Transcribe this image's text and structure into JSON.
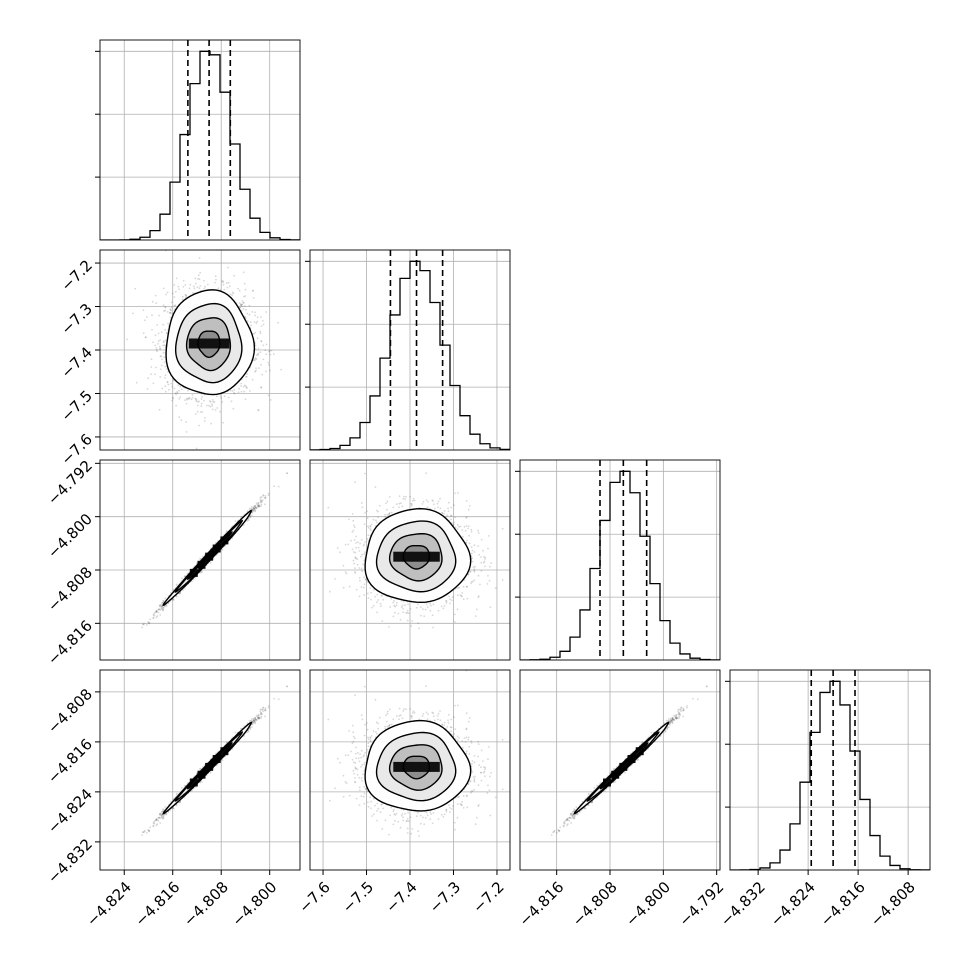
{
  "chart_data": {
    "type": "corner",
    "title": "",
    "grid": true,
    "colors": {
      "line": "#000000",
      "grid": "#b0b0b0",
      "points": "#4d4d4d"
    },
    "parameters": [
      {
        "index": 0,
        "range": [
          -4.828,
          -4.795
        ],
        "ticks": [
          -4.824,
          -4.816,
          -4.808,
          -4.8
        ],
        "tick_labels": [
          "−4.824",
          "−4.816",
          "−4.808",
          "−4.800"
        ]
      },
      {
        "index": 1,
        "range": [
          -7.63,
          -7.17
        ],
        "ticks": [
          -7.6,
          -7.5,
          -7.4,
          -7.3,
          -7.2
        ],
        "tick_labels": [
          "−7.6",
          "−7.5",
          "−7.4",
          "−7.3",
          "−7.2"
        ]
      },
      {
        "index": 2,
        "range": [
          -4.8215,
          -4.7915
        ],
        "ticks": [
          -4.816,
          -4.808,
          -4.8,
          -4.792
        ],
        "tick_labels": [
          "−4.816",
          "−4.808",
          "−4.800",
          "−4.792"
        ]
      },
      {
        "index": 3,
        "range": [
          -4.8365,
          -4.8045
        ],
        "ticks": [
          -4.832,
          -4.824,
          -4.816,
          -4.808
        ],
        "tick_labels": [
          "−4.832",
          "−4.824",
          "−4.816",
          "−4.808"
        ]
      }
    ],
    "marginals": [
      {
        "param": 0,
        "mean": -4.81,
        "sd": 0.0036,
        "quantiles": [
          -4.8135,
          -4.81,
          -4.8065
        ]
      },
      {
        "param": 1,
        "mean": -7.385,
        "sd": 0.06,
        "quantiles": [
          -7.445,
          -7.385,
          -7.325
        ]
      },
      {
        "param": 2,
        "mean": -4.806,
        "sd": 0.0035,
        "quantiles": [
          -4.8095,
          -4.806,
          -4.8025
        ]
      },
      {
        "param": 3,
        "mean": -4.82,
        "sd": 0.0036,
        "quantiles": [
          -4.8235,
          -4.82,
          -4.8165
        ]
      }
    ],
    "joint": [
      {
        "x": 0,
        "y": 1,
        "correlation": 0.0
      },
      {
        "x": 0,
        "y": 2,
        "correlation": 0.995
      },
      {
        "x": 1,
        "y": 2,
        "correlation": 0.0
      },
      {
        "x": 0,
        "y": 3,
        "correlation": 0.995
      },
      {
        "x": 1,
        "y": 3,
        "correlation": 0.0
      },
      {
        "x": 2,
        "y": 3,
        "correlation": 0.995
      }
    ],
    "contour_levels_sigma": [
      0.5,
      1.0,
      1.5,
      2.0
    ]
  }
}
